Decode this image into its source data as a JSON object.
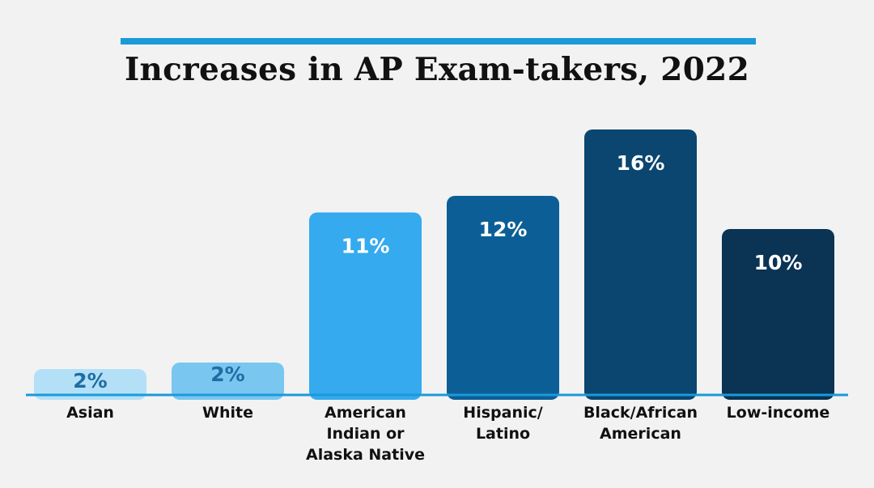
{
  "chart_data": {
    "type": "bar",
    "title": "Increases in AP Exam-takers, 2022",
    "categories": [
      [
        "Asian"
      ],
      [
        "White"
      ],
      [
        "American",
        "Indian or",
        "Alaska Native"
      ],
      [
        "Hispanic/",
        "Latino"
      ],
      [
        "Black/African",
        "American"
      ],
      [
        "Low-income"
      ]
    ],
    "values": [
      2,
      2,
      11,
      12,
      16,
      10
    ],
    "value_labels": [
      "2%",
      "2%",
      "11%",
      "12%",
      "16%",
      "10%"
    ],
    "bar_colors": [
      "#b3e0f7",
      "#79c6f1",
      "#35aaee",
      "#0c5f96",
      "#0a4670",
      "#0a3354"
    ],
    "label_colors": [
      "#1f6da3",
      "#1f6da3",
      "#ffffff",
      "#ffffff",
      "#ffffff",
      "#ffffff"
    ],
    "accent_color": "#1a9ad9",
    "ylim": [
      0,
      16
    ],
    "grid": false,
    "xlabel": "",
    "ylabel": ""
  }
}
